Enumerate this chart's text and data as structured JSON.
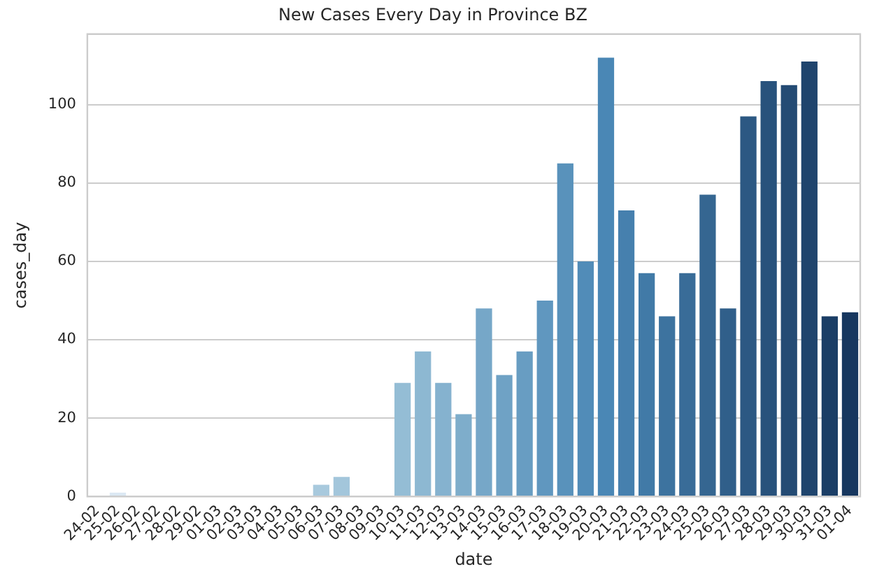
{
  "chart_data": {
    "type": "bar",
    "title": "New Cases Every Day in Province BZ",
    "xlabel": "date",
    "ylabel": "cases_day",
    "categories": [
      "24-02",
      "25-02",
      "26-02",
      "27-02",
      "28-02",
      "29-02",
      "01-03",
      "02-03",
      "03-03",
      "04-03",
      "05-03",
      "06-03",
      "07-03",
      "08-03",
      "09-03",
      "10-03",
      "11-03",
      "12-03",
      "13-03",
      "14-03",
      "15-03",
      "16-03",
      "17-03",
      "18-03",
      "19-03",
      "20-03",
      "21-03",
      "22-03",
      "23-03",
      "24-03",
      "25-03",
      "26-03",
      "27-03",
      "28-03",
      "29-03",
      "30-03",
      "31-03",
      "01-04"
    ],
    "values": [
      0,
      1,
      0,
      0,
      0,
      0,
      0,
      0,
      0,
      0,
      0,
      3,
      5,
      0,
      0,
      29,
      37,
      29,
      21,
      48,
      31,
      37,
      50,
      85,
      60,
      112,
      73,
      57,
      46,
      57,
      77,
      48,
      97,
      106,
      105,
      111,
      46,
      47
    ],
    "colors": [
      "#e0ebf5",
      "#dbe8f3",
      "#d6e5f1",
      "#d1e2ef",
      "#ccdfec",
      "#c7dcea",
      "#c2d9e8",
      "#bcd5e6",
      "#b7d2e4",
      "#b2cfe2",
      "#adcce0",
      "#a8c9dd",
      "#a3c6db",
      "#9ec3d9",
      "#99c0d7",
      "#94bdd5",
      "#8db8d2",
      "#85b2cf",
      "#7eadcb",
      "#76a7c8",
      "#6fa2c5",
      "#689dc2",
      "#6097bf",
      "#5992bb",
      "#518cb8",
      "#4a87b5",
      "#4680ae",
      "#417aa7",
      "#3d739f",
      "#396c98",
      "#356691",
      "#305f8a",
      "#2c5883",
      "#28527c",
      "#244b74",
      "#1f446d",
      "#1b3e66",
      "#17375f"
    ],
    "ylim": [
      0,
      118
    ],
    "yticks": [
      0,
      20,
      40,
      60,
      80,
      100
    ],
    "grid": "y"
  }
}
